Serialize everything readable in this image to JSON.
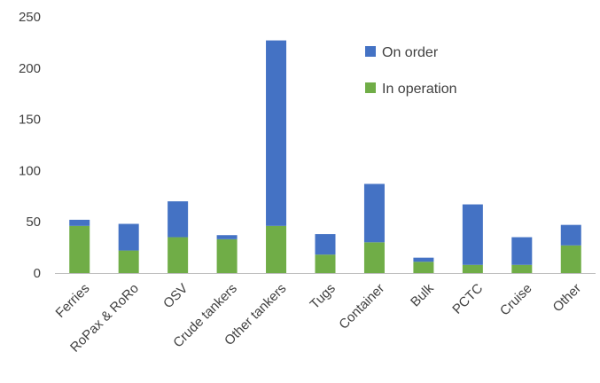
{
  "chart_data": {
    "type": "bar",
    "stacked": true,
    "categories": [
      "Ferries",
      "RoPax & RoRo",
      "OSV",
      "Crude tankers",
      "Other tankers",
      "Tugs",
      "Container",
      "Bulk",
      "PCTC",
      "Cruise",
      "Other"
    ],
    "series": [
      {
        "name": "In operation",
        "color": "#70ad47",
        "values": [
          46,
          22,
          35,
          33,
          46,
          18,
          30,
          11,
          8,
          8,
          27
        ]
      },
      {
        "name": "On order",
        "color": "#4472c4",
        "values": [
          6,
          26,
          35,
          4,
          181,
          20,
          57,
          4,
          59,
          27,
          20
        ]
      }
    ],
    "yticks": [
      0,
      50,
      100,
      150,
      200,
      250
    ],
    "ylim": [
      0,
      250
    ],
    "grid": false,
    "legend_position": "top-right",
    "legend_order": [
      "On order",
      "In operation"
    ]
  }
}
